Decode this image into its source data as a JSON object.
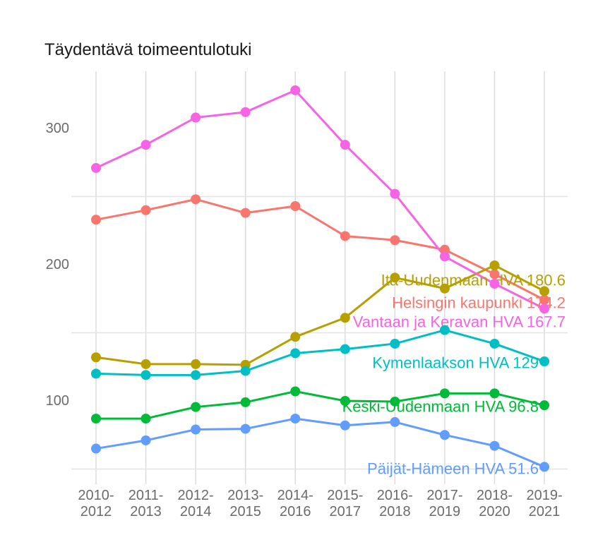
{
  "chart_data": {
    "type": "line",
    "title": "Täydentävä toimeentulotuki",
    "xlabel": "",
    "ylabel": "",
    "categories": [
      "2010-2012",
      "2011-2013",
      "2012-2014",
      "2013-2015",
      "2014-2016",
      "2015-2017",
      "2016-2018",
      "2017-2019",
      "2018-2020",
      "2019-2021"
    ],
    "y_ticks": [
      "100",
      "200",
      "300"
    ],
    "y_tick_values": [
      100,
      200,
      300
    ],
    "minor_gridline_values": [
      50,
      150,
      250
    ],
    "ylim": [
      38,
      343
    ],
    "grid": {
      "vertical": "major at every category",
      "horizontal": "minor at 50/150/250 only"
    },
    "legend_position": "direct labels at right end of each line",
    "series": [
      {
        "name": "Helsingin kaupunki",
        "color": "#F8766D",
        "label": "Helsingin kaupunki 174.2",
        "values": [
          233,
          240,
          248,
          238,
          243,
          221,
          218,
          211,
          193,
          174.2
        ],
        "last_value": 174.2
      },
      {
        "name": "Itä-Uudenmaan HVA",
        "color": "#B79F00",
        "label": "Itä-Uudenmaan HVA 180.6",
        "values": [
          132,
          127,
          127,
          126.5,
          147,
          161,
          190.5,
          182.5,
          199.5,
          180.6
        ],
        "last_value": 180.6
      },
      {
        "name": "Keski-Uudenmaan HVA",
        "color": "#00BA38",
        "label": "Keski-Uudenmaan HVA 96.8",
        "values": [
          87,
          87,
          95.5,
          99,
          107,
          100,
          99.5,
          105.5,
          105.5,
          96.8
        ],
        "last_value": 96.8
      },
      {
        "name": "Kymenlaakson HVA",
        "color": "#00BFC4",
        "label": "Kymenlaakson HVA 129",
        "values": [
          120,
          119,
          119,
          122,
          135,
          138,
          142,
          152,
          142,
          129
        ],
        "last_value": 129
      },
      {
        "name": "Päijät-Hämeen HVA",
        "color": "#619CFF",
        "label": "Päijät-Hämeen HVA 51.6",
        "values": [
          65,
          71,
          79,
          79.5,
          87,
          82,
          84.5,
          75,
          67,
          51.6
        ],
        "last_value": 51.6
      },
      {
        "name": "Vantaan ja Keravan HVA",
        "color": "#F564E3",
        "label": "Vantaan ja Keravan HVA 167.7",
        "values": [
          271,
          288,
          308,
          312,
          328,
          288,
          252,
          206,
          186,
          167.7
        ],
        "last_value": 167.7
      }
    ],
    "colors": {
      "background": "#ffffff",
      "vertical_grid": "#d9d9d9",
      "horizontal_grid": "#e3e3e3",
      "tick_text": "#6b6b6b",
      "title_text": "#1a1a1a"
    }
  }
}
